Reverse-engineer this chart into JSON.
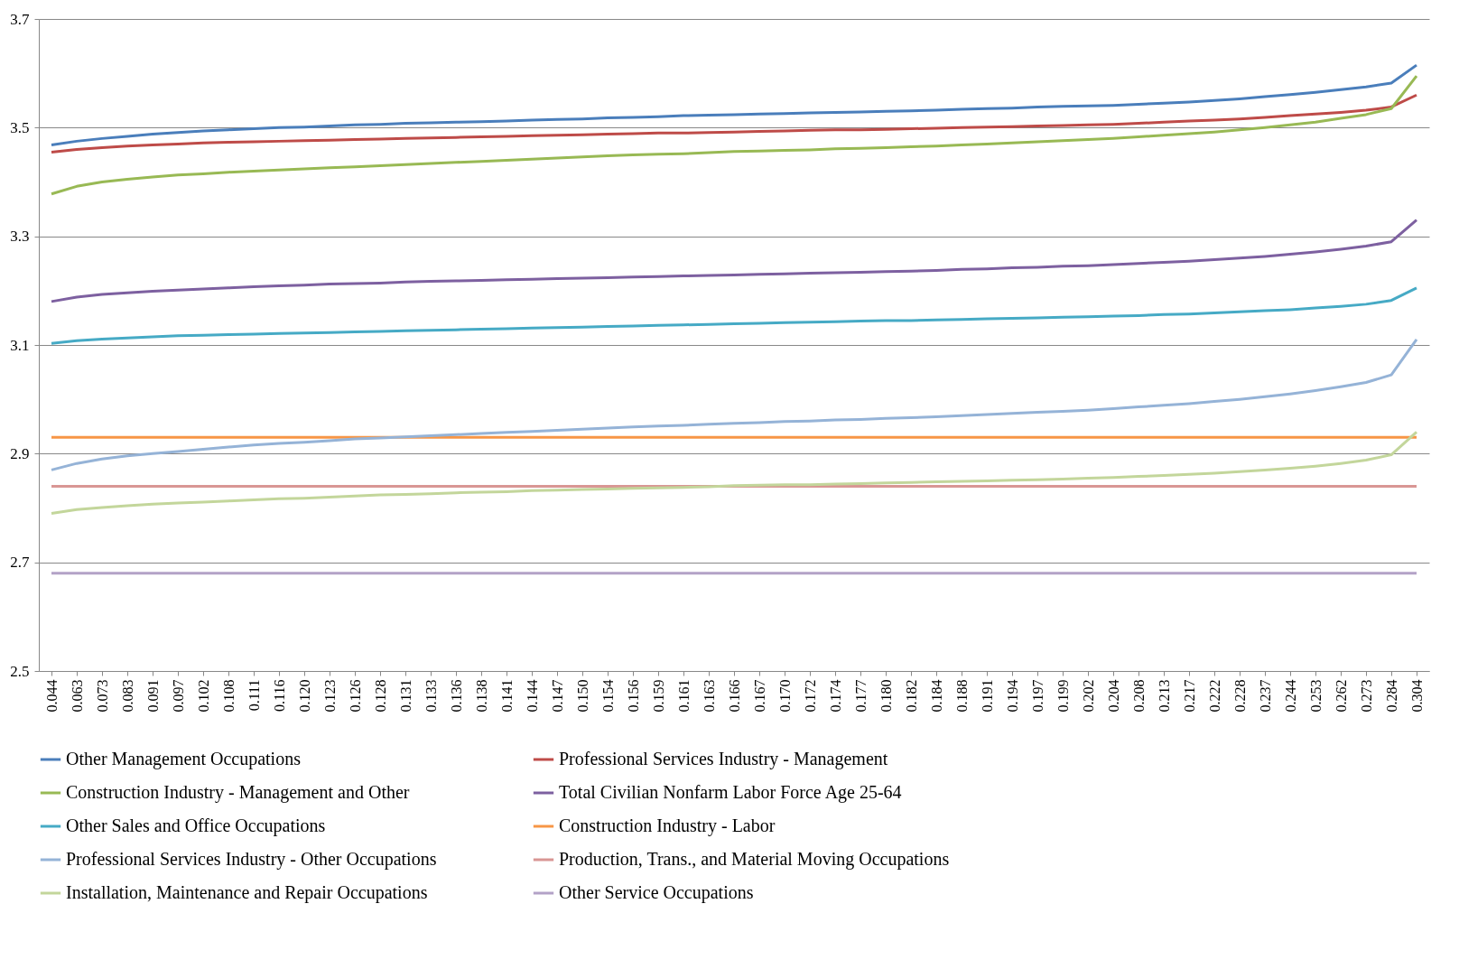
{
  "chart_data": {
    "type": "line",
    "categories": [
      "0.044",
      "0.063",
      "0.073",
      "0.083",
      "0.091",
      "0.097",
      "0.102",
      "0.108",
      "0.111",
      "0.116",
      "0.120",
      "0.123",
      "0.126",
      "0.128",
      "0.131",
      "0.133",
      "0.136",
      "0.138",
      "0.141",
      "0.144",
      "0.147",
      "0.150",
      "0.154",
      "0.156",
      "0.159",
      "0.161",
      "0.163",
      "0.166",
      "0.167",
      "0.170",
      "0.172",
      "0.174",
      "0.177",
      "0.180",
      "0.182",
      "0.184",
      "0.188",
      "0.191",
      "0.194",
      "0.197",
      "0.199",
      "0.202",
      "0.204",
      "0.208",
      "0.213",
      "0.217",
      "0.222",
      "0.228",
      "0.237",
      "0.244",
      "0.253",
      "0.262",
      "0.273",
      "0.284",
      "0.304"
    ],
    "ylim": [
      2.5,
      3.7
    ],
    "yticks": [
      2.5,
      2.7,
      2.9,
      3.1,
      3.3,
      3.5,
      3.7
    ],
    "grid": "y",
    "legend": "bottom",
    "series": [
      {
        "name": "Other Management Occupations",
        "color": "#4a7ebb",
        "values": [
          3.468,
          3.475,
          3.48,
          3.484,
          3.488,
          3.491,
          3.494,
          3.496,
          3.498,
          3.5,
          3.501,
          3.503,
          3.505,
          3.506,
          3.508,
          3.509,
          3.51,
          3.511,
          3.512,
          3.514,
          3.515,
          3.516,
          3.518,
          3.519,
          3.52,
          3.522,
          3.523,
          3.524,
          3.525,
          3.526,
          3.527,
          3.528,
          3.529,
          3.53,
          3.531,
          3.532,
          3.534,
          3.535,
          3.536,
          3.538,
          3.539,
          3.54,
          3.541,
          3.543,
          3.545,
          3.547,
          3.55,
          3.553,
          3.557,
          3.561,
          3.565,
          3.57,
          3.575,
          3.582,
          3.615
        ]
      },
      {
        "name": "Professional Services Industry - Management",
        "color": "#be4b48",
        "values": [
          3.455,
          3.46,
          3.463,
          3.466,
          3.468,
          3.47,
          3.472,
          3.473,
          3.474,
          3.475,
          3.476,
          3.477,
          3.478,
          3.479,
          3.48,
          3.481,
          3.482,
          3.483,
          3.484,
          3.485,
          3.486,
          3.487,
          3.488,
          3.489,
          3.49,
          3.49,
          3.491,
          3.492,
          3.493,
          3.494,
          3.495,
          3.496,
          3.496,
          3.497,
          3.498,
          3.499,
          3.5,
          3.501,
          3.502,
          3.503,
          3.504,
          3.505,
          3.506,
          3.508,
          3.51,
          3.512,
          3.514,
          3.516,
          3.519,
          3.522,
          3.525,
          3.528,
          3.532,
          3.538,
          3.56
        ]
      },
      {
        "name": "Construction Industry - Management and Other",
        "color": "#98b954",
        "values": [
          3.378,
          3.392,
          3.4,
          3.405,
          3.409,
          3.413,
          3.415,
          3.418,
          3.42,
          3.422,
          3.424,
          3.426,
          3.428,
          3.43,
          3.432,
          3.434,
          3.436,
          3.438,
          3.44,
          3.442,
          3.444,
          3.446,
          3.448,
          3.45,
          3.451,
          3.452,
          3.454,
          3.456,
          3.457,
          3.458,
          3.459,
          3.461,
          3.462,
          3.463,
          3.465,
          3.466,
          3.468,
          3.47,
          3.472,
          3.474,
          3.476,
          3.478,
          3.48,
          3.483,
          3.486,
          3.489,
          3.492,
          3.496,
          3.5,
          3.505,
          3.51,
          3.517,
          3.524,
          3.535,
          3.595
        ]
      },
      {
        "name": "Total Civilian Nonfarm Labor Force Age 25-64",
        "color": "#7d60a0",
        "values": [
          3.18,
          3.188,
          3.193,
          3.196,
          3.199,
          3.201,
          3.203,
          3.205,
          3.207,
          3.209,
          3.21,
          3.212,
          3.213,
          3.214,
          3.216,
          3.217,
          3.218,
          3.219,
          3.22,
          3.221,
          3.222,
          3.223,
          3.224,
          3.225,
          3.226,
          3.227,
          3.228,
          3.229,
          3.23,
          3.231,
          3.232,
          3.233,
          3.234,
          3.235,
          3.236,
          3.237,
          3.239,
          3.24,
          3.242,
          3.243,
          3.245,
          3.246,
          3.248,
          3.25,
          3.252,
          3.254,
          3.257,
          3.26,
          3.263,
          3.267,
          3.271,
          3.276,
          3.282,
          3.29,
          3.33
        ]
      },
      {
        "name": "Other Sales and Office Occupations",
        "color": "#46aac5",
        "values": [
          3.103,
          3.108,
          3.111,
          3.113,
          3.115,
          3.117,
          3.118,
          3.119,
          3.12,
          3.121,
          3.122,
          3.123,
          3.124,
          3.125,
          3.126,
          3.127,
          3.128,
          3.129,
          3.13,
          3.131,
          3.132,
          3.133,
          3.134,
          3.135,
          3.136,
          3.137,
          3.138,
          3.139,
          3.14,
          3.141,
          3.142,
          3.143,
          3.144,
          3.145,
          3.145,
          3.146,
          3.147,
          3.148,
          3.149,
          3.15,
          3.151,
          3.152,
          3.153,
          3.154,
          3.156,
          3.157,
          3.159,
          3.161,
          3.163,
          3.165,
          3.168,
          3.171,
          3.175,
          3.182,
          3.205
        ]
      },
      {
        "name": "Construction Industry - Labor",
        "color": "#f79646",
        "values": [
          2.93,
          2.93,
          2.93,
          2.93,
          2.93,
          2.93,
          2.93,
          2.93,
          2.93,
          2.93,
          2.93,
          2.93,
          2.93,
          2.93,
          2.93,
          2.93,
          2.93,
          2.93,
          2.93,
          2.93,
          2.93,
          2.93,
          2.93,
          2.93,
          2.93,
          2.93,
          2.93,
          2.93,
          2.93,
          2.93,
          2.93,
          2.93,
          2.93,
          2.93,
          2.93,
          2.93,
          2.93,
          2.93,
          2.93,
          2.93,
          2.93,
          2.93,
          2.93,
          2.93,
          2.93,
          2.93,
          2.93,
          2.93,
          2.93,
          2.93,
          2.93,
          2.93,
          2.93,
          2.93,
          2.93
        ]
      },
      {
        "name": "Professional Services Industry - Other Occupations",
        "color": "#95b3d7",
        "values": [
          2.87,
          2.882,
          2.89,
          2.896,
          2.9,
          2.904,
          2.908,
          2.912,
          2.916,
          2.919,
          2.921,
          2.924,
          2.927,
          2.929,
          2.931,
          2.933,
          2.935,
          2.937,
          2.939,
          2.941,
          2.943,
          2.945,
          2.947,
          2.949,
          2.951,
          2.952,
          2.954,
          2.956,
          2.957,
          2.959,
          2.96,
          2.962,
          2.963,
          2.965,
          2.966,
          2.968,
          2.97,
          2.972,
          2.974,
          2.976,
          2.978,
          2.98,
          2.983,
          2.986,
          2.989,
          2.992,
          2.996,
          3.0,
          3.005,
          3.01,
          3.016,
          3.023,
          3.031,
          3.045,
          3.11
        ]
      },
      {
        "name": "Production, Trans., and Material Moving Occupations",
        "color": "#d99694",
        "values": [
          2.84,
          2.84,
          2.84,
          2.84,
          2.84,
          2.84,
          2.84,
          2.84,
          2.84,
          2.84,
          2.84,
          2.84,
          2.84,
          2.84,
          2.84,
          2.84,
          2.84,
          2.84,
          2.84,
          2.84,
          2.84,
          2.84,
          2.84,
          2.84,
          2.84,
          2.84,
          2.84,
          2.84,
          2.84,
          2.84,
          2.84,
          2.84,
          2.84,
          2.84,
          2.84,
          2.84,
          2.84,
          2.84,
          2.84,
          2.84,
          2.84,
          2.84,
          2.84,
          2.84,
          2.84,
          2.84,
          2.84,
          2.84,
          2.84,
          2.84,
          2.84,
          2.84,
          2.84,
          2.84,
          2.84
        ]
      },
      {
        "name": "Installation, Maintenance and Repair Occupations",
        "color": "#c3d69b",
        "values": [
          2.79,
          2.797,
          2.801,
          2.804,
          2.807,
          2.809,
          2.811,
          2.813,
          2.815,
          2.817,
          2.818,
          2.82,
          2.822,
          2.824,
          2.825,
          2.826,
          2.828,
          2.829,
          2.83,
          2.832,
          2.833,
          2.834,
          2.835,
          2.836,
          2.837,
          2.838,
          2.839,
          2.841,
          2.842,
          2.843,
          2.843,
          2.844,
          2.845,
          2.846,
          2.847,
          2.848,
          2.849,
          2.85,
          2.851,
          2.852,
          2.853,
          2.855,
          2.856,
          2.858,
          2.86,
          2.862,
          2.864,
          2.867,
          2.87,
          2.873,
          2.877,
          2.882,
          2.888,
          2.898,
          2.94
        ]
      },
      {
        "name": "Other Service Occupations",
        "color": "#b3a2c7",
        "values": [
          2.68,
          2.68,
          2.68,
          2.68,
          2.68,
          2.68,
          2.68,
          2.68,
          2.68,
          2.68,
          2.68,
          2.68,
          2.68,
          2.68,
          2.68,
          2.68,
          2.68,
          2.68,
          2.68,
          2.68,
          2.68,
          2.68,
          2.68,
          2.68,
          2.68,
          2.68,
          2.68,
          2.68,
          2.68,
          2.68,
          2.68,
          2.68,
          2.68,
          2.68,
          2.68,
          2.68,
          2.68,
          2.68,
          2.68,
          2.68,
          2.68,
          2.68,
          2.68,
          2.68,
          2.68,
          2.68,
          2.68,
          2.68,
          2.68,
          2.68,
          2.68,
          2.68,
          2.68,
          2.68,
          2.68
        ]
      }
    ]
  }
}
